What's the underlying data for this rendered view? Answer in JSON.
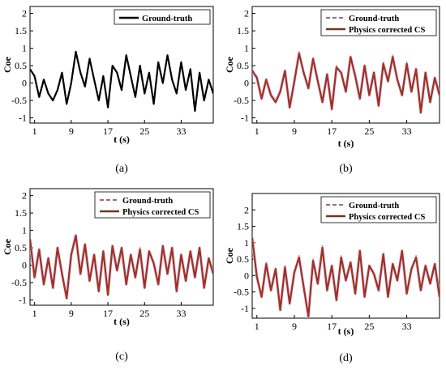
{
  "chart_data": [
    {
      "type": "line",
      "panel_label": "(a)",
      "ylabel": "Coe",
      "xlabel": "t (s)",
      "xticks": [
        "1",
        "9",
        "17",
        "25",
        "33"
      ],
      "yticks": [
        "-1",
        "-0.5",
        "0",
        "0.5",
        "1",
        "1.5",
        "2"
      ],
      "xlim": [
        0,
        40
      ],
      "ylim": [
        -1.15,
        2.2
      ],
      "grid": false,
      "legend_position": "top-right",
      "series": [
        {
          "name": "Ground-truth",
          "style": "solid",
          "color": "#000000",
          "x": [
            0,
            1,
            2,
            3,
            4,
            5,
            6,
            7,
            8,
            9,
            10,
            11,
            12,
            13,
            14,
            15,
            16,
            17,
            18,
            19,
            20,
            21,
            22,
            23,
            24,
            25,
            26,
            27,
            28,
            29,
            30,
            31,
            32,
            33,
            34,
            35,
            36,
            37,
            38,
            39,
            40
          ],
          "y": [
            0.4,
            0.2,
            -0.4,
            0.1,
            -0.3,
            -0.5,
            -0.2,
            0.3,
            -0.6,
            0.0,
            0.9,
            0.3,
            -0.1,
            0.7,
            0.1,
            -0.5,
            0.2,
            -0.7,
            0.5,
            0.3,
            -0.2,
            0.8,
            0.2,
            -0.4,
            0.5,
            -0.3,
            0.3,
            -0.6,
            0.6,
            0.0,
            0.8,
            0.1,
            -0.3,
            0.6,
            -0.2,
            0.4,
            -0.8,
            0.3,
            -0.5,
            0.1,
            -0.3
          ]
        }
      ]
    },
    {
      "type": "line",
      "panel_label": "(b)",
      "ylabel": "Coe",
      "xlabel": "t (s)",
      "xticks": [
        "1",
        "9",
        "17",
        "25",
        "33"
      ],
      "yticks": [
        "-1",
        "-0.5",
        "0",
        "0.5",
        "1",
        "1.5",
        "2"
      ],
      "xlim": [
        0,
        40
      ],
      "ylim": [
        -1.15,
        2.2
      ],
      "grid": false,
      "legend_position": "top-right",
      "series": [
        {
          "name": "Ground-truth",
          "style": "dashed",
          "color": "#9a6b8f",
          "x": [
            0,
            1,
            2,
            3,
            4,
            5,
            6,
            7,
            8,
            9,
            10,
            11,
            12,
            13,
            14,
            15,
            16,
            17,
            18,
            19,
            20,
            21,
            22,
            23,
            24,
            25,
            26,
            27,
            28,
            29,
            30,
            31,
            32,
            33,
            34,
            35,
            36,
            37,
            38,
            39,
            40
          ],
          "y": [
            0.4,
            0.2,
            -0.4,
            0.1,
            -0.3,
            -0.5,
            -0.2,
            0.3,
            -0.6,
            0.0,
            0.9,
            0.3,
            -0.1,
            0.7,
            0.1,
            -0.5,
            0.2,
            -0.7,
            0.5,
            0.3,
            -0.2,
            0.8,
            0.2,
            -0.4,
            0.5,
            -0.3,
            0.3,
            -0.6,
            0.6,
            0.0,
            0.8,
            0.1,
            -0.3,
            0.6,
            -0.2,
            0.4,
            -0.8,
            0.3,
            -0.5,
            0.1,
            -0.3
          ]
        },
        {
          "name": "Physics corrected CS",
          "style": "solid",
          "color": "#6b3a22",
          "overlay_color": "#cc2a1e",
          "x": [
            0,
            1,
            2,
            3,
            4,
            5,
            6,
            7,
            8,
            9,
            10,
            11,
            12,
            13,
            14,
            15,
            16,
            17,
            18,
            19,
            20,
            21,
            22,
            23,
            24,
            25,
            26,
            27,
            28,
            29,
            30,
            31,
            32,
            33,
            34,
            35,
            36,
            37,
            38,
            39,
            40
          ],
          "y": [
            0.35,
            0.15,
            -0.45,
            0.1,
            -0.35,
            -0.55,
            -0.25,
            0.35,
            -0.7,
            0.05,
            0.85,
            0.3,
            -0.15,
            0.7,
            0.05,
            -0.55,
            0.25,
            -0.75,
            0.45,
            0.3,
            -0.25,
            0.75,
            0.2,
            -0.45,
            0.5,
            -0.35,
            0.3,
            -0.65,
            0.55,
            0.05,
            0.75,
            0.1,
            -0.35,
            0.55,
            -0.25,
            0.4,
            -0.85,
            0.3,
            -0.55,
            0.15,
            -0.35
          ]
        }
      ]
    },
    {
      "type": "line",
      "panel_label": "(c)",
      "ylabel": "Coe",
      "xlabel": "t (s)",
      "xticks": [
        "1",
        "9",
        "17",
        "25",
        "33"
      ],
      "yticks": [
        "-1",
        "-0.5",
        "0",
        "0.5",
        "1",
        "1.5",
        "2"
      ],
      "xlim": [
        0,
        40
      ],
      "ylim": [
        -1.15,
        2.2
      ],
      "grid": false,
      "legend_position": "top-right",
      "series": [
        {
          "name": "Ground-truth",
          "style": "dashed",
          "color": "#9a6b8f",
          "x": [
            0,
            1,
            2,
            3,
            4,
            5,
            6,
            7,
            8,
            9,
            10,
            11,
            12,
            13,
            14,
            15,
            16,
            17,
            18,
            19,
            20,
            21,
            22,
            23,
            24,
            25,
            26,
            27,
            28,
            29,
            30,
            31,
            32,
            33,
            34,
            35,
            36,
            37,
            38,
            39,
            40
          ],
          "y": [
            0.7,
            -0.3,
            0.4,
            -0.5,
            0.2,
            -0.6,
            0.5,
            -0.2,
            -0.9,
            0.3,
            0.9,
            -0.2,
            0.6,
            -0.4,
            0.3,
            -0.7,
            0.4,
            -0.8,
            0.6,
            -0.1,
            0.5,
            -0.5,
            0.3,
            -0.3,
            0.5,
            -0.6,
            0.4,
            0.1,
            -0.5,
            0.6,
            -0.2,
            0.5,
            -0.7,
            0.3,
            -0.4,
            0.4,
            -0.3,
            0.5,
            -0.6,
            0.2,
            -0.2
          ]
        },
        {
          "name": "Physics corrected CS",
          "style": "solid",
          "color": "#6b3a22",
          "overlay_color": "#cc2a1e",
          "x": [
            0,
            1,
            2,
            3,
            4,
            5,
            6,
            7,
            8,
            9,
            10,
            11,
            12,
            13,
            14,
            15,
            16,
            17,
            18,
            19,
            20,
            21,
            22,
            23,
            24,
            25,
            26,
            27,
            28,
            29,
            30,
            31,
            32,
            33,
            34,
            35,
            36,
            37,
            38,
            39,
            40
          ],
          "y": [
            0.75,
            -0.35,
            0.45,
            -0.55,
            0.2,
            -0.65,
            0.5,
            -0.25,
            -0.95,
            0.3,
            0.85,
            -0.25,
            0.6,
            -0.45,
            0.3,
            -0.75,
            0.4,
            -0.85,
            0.55,
            -0.15,
            0.5,
            -0.55,
            0.3,
            -0.35,
            0.45,
            -0.65,
            0.4,
            0.05,
            -0.55,
            0.55,
            -0.25,
            0.5,
            -0.75,
            0.3,
            -0.45,
            0.4,
            -0.35,
            0.5,
            -0.65,
            0.2,
            -0.25
          ]
        }
      ]
    },
    {
      "type": "line",
      "panel_label": "(d)",
      "ylabel": "Coe",
      "xlabel": "t (s)",
      "xticks": [
        "1",
        "9",
        "17",
        "25",
        "33"
      ],
      "yticks": [
        "-1",
        "-0.5",
        "0",
        "0.5",
        "1",
        "1.5",
        "2"
      ],
      "xlim": [
        0,
        40
      ],
      "ylim": [
        -1.3,
        2.5
      ],
      "grid": false,
      "legend_position": "top-right",
      "series": [
        {
          "name": "Ground-truth",
          "style": "dashed",
          "color": "#9a6b8f",
          "x": [
            0,
            1,
            2,
            3,
            4,
            5,
            6,
            7,
            8,
            9,
            10,
            11,
            12,
            13,
            14,
            15,
            16,
            17,
            18,
            19,
            20,
            21,
            22,
            23,
            24,
            25,
            26,
            27,
            28,
            29,
            30,
            31,
            32,
            33,
            34,
            35,
            36,
            37,
            38,
            39,
            40
          ],
          "y": [
            1.2,
            0.0,
            -0.6,
            0.4,
            -0.4,
            0.2,
            -1.0,
            0.3,
            -0.8,
            0.1,
            0.6,
            -0.3,
            -1.2,
            0.5,
            -0.2,
            0.9,
            -0.4,
            0.3,
            -0.7,
            0.6,
            -0.1,
            0.4,
            -0.5,
            0.8,
            -0.6,
            0.3,
            0.1,
            -0.4,
            0.7,
            -0.6,
            0.4,
            -0.1,
            0.8,
            -0.5,
            0.2,
            0.6,
            -0.4,
            0.3,
            -0.2,
            0.4,
            -0.6
          ]
        },
        {
          "name": "Physics corrected CS",
          "style": "solid",
          "color": "#6b3a22",
          "overlay_color": "#cc2a1e",
          "x": [
            0,
            1,
            2,
            3,
            4,
            5,
            6,
            7,
            8,
            9,
            10,
            11,
            12,
            13,
            14,
            15,
            16,
            17,
            18,
            19,
            20,
            21,
            22,
            23,
            24,
            25,
            26,
            27,
            28,
            29,
            30,
            31,
            32,
            33,
            34,
            35,
            36,
            37,
            38,
            39,
            40
          ],
          "y": [
            1.15,
            -0.05,
            -0.65,
            0.35,
            -0.45,
            0.2,
            -1.05,
            0.25,
            -0.85,
            0.1,
            0.55,
            -0.35,
            -1.25,
            0.45,
            -0.25,
            0.85,
            -0.45,
            0.3,
            -0.75,
            0.55,
            -0.15,
            0.4,
            -0.55,
            0.75,
            -0.65,
            0.3,
            0.05,
            -0.45,
            0.65,
            -0.65,
            0.35,
            -0.15,
            0.75,
            -0.55,
            0.2,
            0.55,
            -0.45,
            0.3,
            -0.25,
            0.35,
            -0.65
          ]
        }
      ]
    }
  ]
}
